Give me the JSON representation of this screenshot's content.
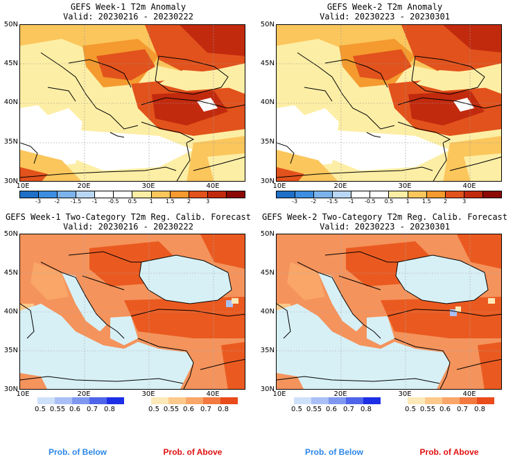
{
  "panels": [
    {
      "title": "GEFS Week-1 T2m Anomaly",
      "valid": "Valid: 20230216 - 20230222",
      "kind": "anomaly"
    },
    {
      "title": "GEFS Week-2 T2m Anomaly",
      "valid": "Valid: 20230223 - 20230301",
      "kind": "anomaly"
    },
    {
      "title": "GEFS Week-1 Two-Category T2m Reg. Calib. Forecast",
      "valid": "Valid: 20230216 - 20230222",
      "kind": "prob"
    },
    {
      "title": "GEFS Week-2 Two-Category T2m Reg. Calib. Forecast",
      "valid": "Valid: 20230223 - 20230301",
      "kind": "prob"
    }
  ],
  "lat_labels_top": [
    "50N",
    "45N",
    "40N",
    "35N",
    "30N"
  ],
  "lon_labels_top": [
    "10E",
    "20E",
    "30E",
    "40E"
  ],
  "lat_labels_bottom": [
    "50N",
    "45N",
    "40N",
    "35N",
    "30N"
  ],
  "lon_labels_bottom": [
    "10E",
    "20E",
    "30E",
    "40E"
  ],
  "anomaly_colorbar": {
    "labels": [
      "-3",
      "-2",
      "-1.5",
      "-1",
      "-0.5",
      "0.5",
      "1",
      "1.5",
      "2",
      "3"
    ],
    "colors": [
      "#1f6fc6",
      "#3d8de0",
      "#7bb3ea",
      "#b9d7f4",
      "#ffffff",
      "#ffffff",
      "#fdeea5",
      "#fbc65c",
      "#f49a2e",
      "#e2521c",
      "#c22a0e",
      "#8b0a05"
    ]
  },
  "prob_below_bar": {
    "labels": [
      "0.5",
      "0.55",
      "0.6",
      "0.7",
      "0.8"
    ],
    "colors": [
      "#cfe0fb",
      "#a9bff5",
      "#7f97ef",
      "#4e64ea",
      "#1c2fe6"
    ]
  },
  "prob_above_bar": {
    "labels": [
      "0.5",
      "0.55",
      "0.6",
      "0.7",
      "0.8"
    ],
    "colors": [
      "#fde9b8",
      "#fcc98a",
      "#f9a668",
      "#f2793f",
      "#ea4b1b"
    ]
  },
  "legend_labels": {
    "below": "Prob. of Below",
    "above": "Prob. of Above",
    "below_color": "#2b86e6",
    "above_color": "#e0100f"
  },
  "colors": {
    "sea_prob": "#d7f0f6",
    "land_prob_low": "#f4935c",
    "land_prob_high": "#ea5a20",
    "anomaly_warm_low": "#fdeea5",
    "anomaly_warm_mid": "#fbc65c",
    "anomaly_warm_high": "#e2521c",
    "anomaly_hot": "#c22a0e"
  }
}
